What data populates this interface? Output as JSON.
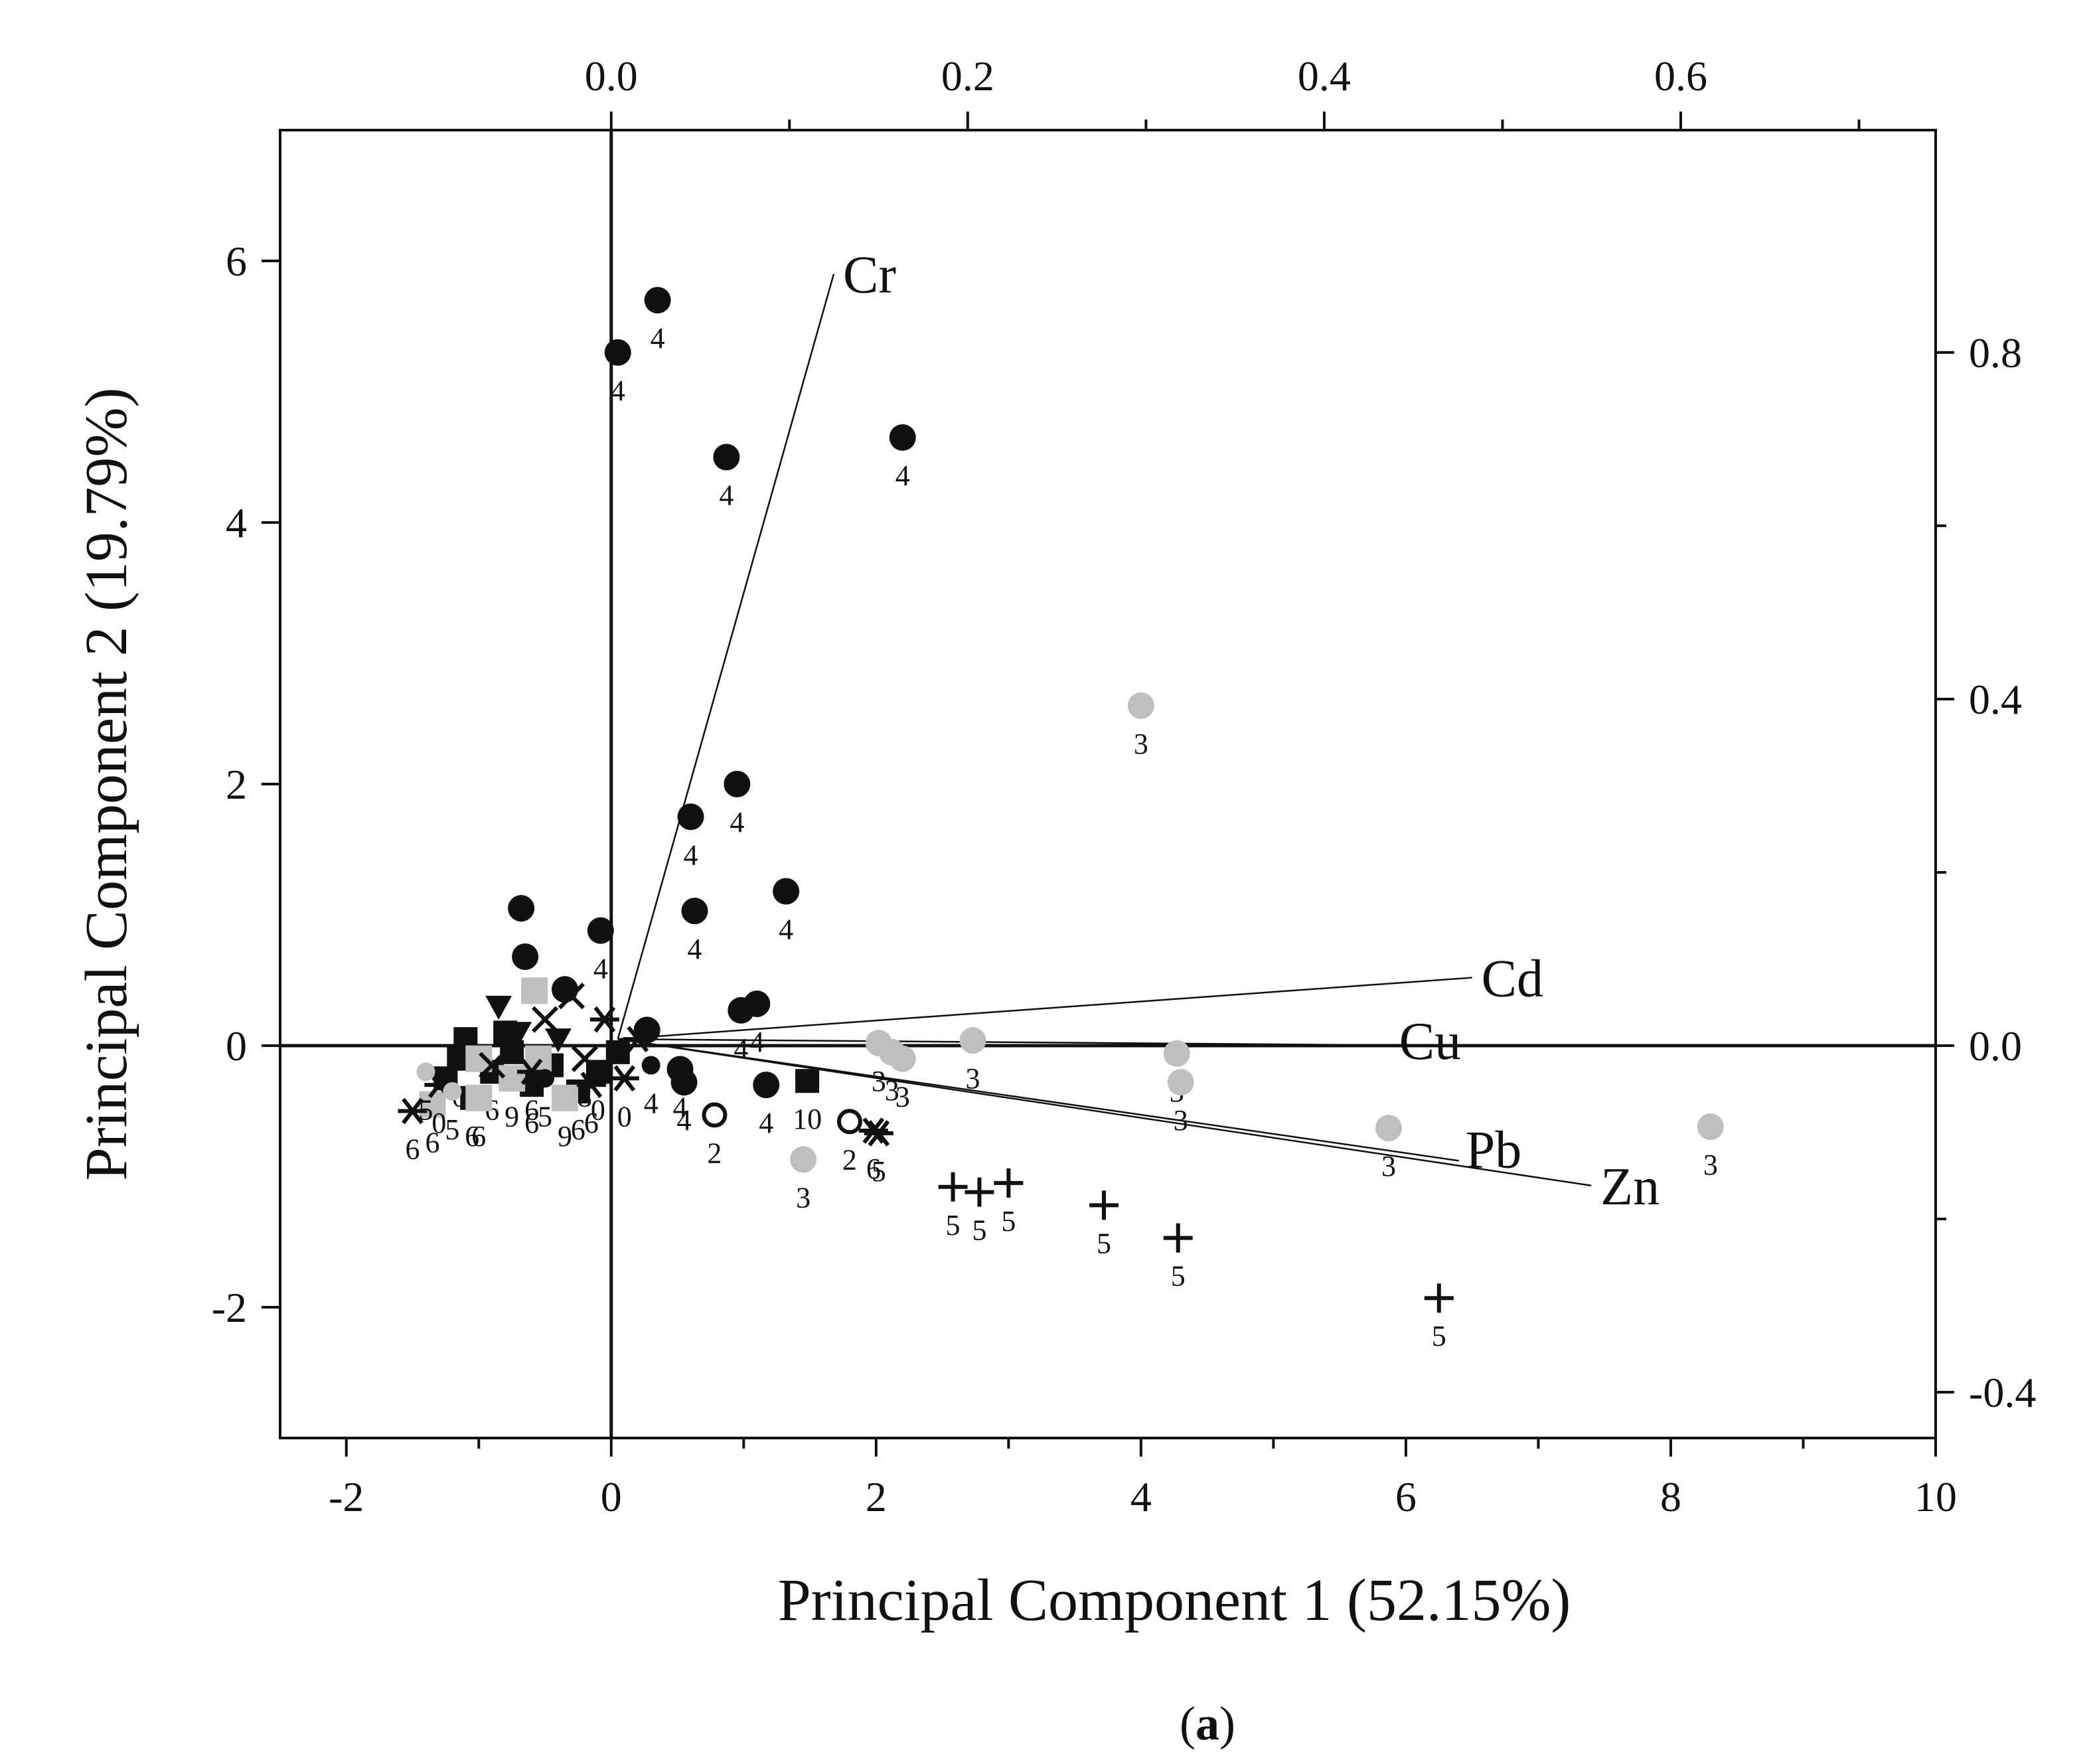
{
  "chart_data": {
    "type": "scatter",
    "xlabel": "Principal Component 1 (52.15%)",
    "ylabel": "Principal Component 2 (19.79%)",
    "caption_open": "(",
    "caption_letter": "a",
    "caption_close": ")",
    "x_ticks": [
      "-2",
      "0",
      "2",
      "4",
      "6",
      "8",
      "10"
    ],
    "y_ticks": [
      "-2",
      "0",
      "2",
      "4",
      "6"
    ],
    "top_ticks": [
      "0.0",
      "0.2",
      "0.4",
      "0.6"
    ],
    "right_ticks": [
      "-0.4",
      "0.0",
      "0.4",
      "0.8"
    ],
    "xlim": [
      -2.5,
      10
    ],
    "ylim": [
      -3,
      7
    ],
    "top_lim": [
      -0.0,
      0.743
    ],
    "right_lim": [
      -0.5,
      0.98
    ],
    "loadings": [
      {
        "label": "Cr",
        "x": 1.68,
        "y": 5.9
      },
      {
        "label": "Cd",
        "x": 6.5,
        "y": 0.52
      },
      {
        "label": "Cu",
        "x": 6.3,
        "y": 0.0
      },
      {
        "label": "Pb",
        "x": 6.4,
        "y": -0.88
      },
      {
        "label": "Zn",
        "x": 7.4,
        "y": -1.07
      }
    ],
    "points": [
      {
        "m": "black-circle",
        "x": 0.35,
        "y": 5.7,
        "label": "4"
      },
      {
        "m": "black-circle",
        "x": 0.05,
        "y": 5.3,
        "label": "4"
      },
      {
        "m": "black-circle",
        "x": 0.87,
        "y": 4.5,
        "label": "4"
      },
      {
        "m": "black-circle",
        "x": 2.2,
        "y": 4.65,
        "label": "4"
      },
      {
        "m": "black-circle",
        "x": 0.95,
        "y": 2.0,
        "label": "4"
      },
      {
        "m": "black-circle",
        "x": 0.6,
        "y": 1.75,
        "label": "4"
      },
      {
        "m": "black-circle",
        "x": 1.32,
        "y": 1.18,
        "label": "4"
      },
      {
        "m": "black-circle",
        "x": 0.63,
        "y": 1.03,
        "label": "4"
      },
      {
        "m": "black-circle",
        "x": -0.68,
        "y": 1.05,
        "label": ""
      },
      {
        "m": "black-circle",
        "x": -0.65,
        "y": 0.68,
        "label": ""
      },
      {
        "m": "black-circle",
        "x": -0.08,
        "y": 0.88,
        "label": "4"
      },
      {
        "m": "black-circle",
        "x": 0.98,
        "y": 0.27,
        "label": "4"
      },
      {
        "m": "black-circle",
        "x": 1.1,
        "y": 0.32,
        "label": "4"
      },
      {
        "m": "black-circle",
        "x": 1.17,
        "y": -0.3,
        "label": "4"
      },
      {
        "m": "black-circle",
        "x": 0.52,
        "y": -0.18,
        "label": "4"
      },
      {
        "m": "black-circle",
        "x": 0.55,
        "y": -0.28,
        "label": "4"
      },
      {
        "m": "black-circle",
        "x": -0.35,
        "y": 0.43,
        "label": ""
      },
      {
        "m": "black-circle",
        "x": 0.27,
        "y": 0.12,
        "label": ""
      },
      {
        "m": "gray-circle",
        "x": 4.0,
        "y": 2.6,
        "label": "3"
      },
      {
        "m": "gray-circle",
        "x": 2.73,
        "y": 0.04,
        "label": "3"
      },
      {
        "m": "gray-circle",
        "x": 2.02,
        "y": 0.02,
        "label": "3"
      },
      {
        "m": "gray-circle",
        "x": 2.12,
        "y": -0.05,
        "label": "3"
      },
      {
        "m": "gray-circle",
        "x": 2.2,
        "y": -0.1,
        "label": "3"
      },
      {
        "m": "gray-circle",
        "x": 4.27,
        "y": -0.06,
        "label": "3"
      },
      {
        "m": "gray-circle",
        "x": 4.3,
        "y": -0.28,
        "label": "3"
      },
      {
        "m": "gray-circle",
        "x": 5.87,
        "y": -0.63,
        "label": "3"
      },
      {
        "m": "gray-circle",
        "x": 8.3,
        "y": -0.62,
        "label": "3"
      },
      {
        "m": "gray-circle",
        "x": 1.45,
        "y": -0.87,
        "label": "3"
      },
      {
        "m": "plus",
        "x": 2.58,
        "y": -1.08,
        "label": "5"
      },
      {
        "m": "plus",
        "x": 2.78,
        "y": -1.12,
        "label": "5"
      },
      {
        "m": "plus",
        "x": 3.0,
        "y": -1.05,
        "label": "5"
      },
      {
        "m": "plus",
        "x": 3.72,
        "y": -1.22,
        "label": "5"
      },
      {
        "m": "plus",
        "x": 4.28,
        "y": -1.47,
        "label": "5"
      },
      {
        "m": "plus",
        "x": 6.25,
        "y": -1.93,
        "label": "5"
      },
      {
        "m": "open-circle",
        "x": 0.78,
        "y": -0.53,
        "label": "2"
      },
      {
        "m": "open-circle",
        "x": 1.8,
        "y": -0.58,
        "label": "2"
      },
      {
        "m": "asterisk",
        "x": 1.98,
        "y": -0.65,
        "label": "6"
      },
      {
        "m": "asterisk",
        "x": 2.02,
        "y": -0.67,
        "label": "5"
      },
      {
        "m": "black-square",
        "x": 1.48,
        "y": -0.27,
        "label": "10"
      },
      {
        "m": "black-square",
        "x": -1.25,
        "y": -0.25,
        "label": ""
      },
      {
        "m": "black-square",
        "x": -1.15,
        "y": -0.1,
        "label": "6"
      },
      {
        "m": "black-square",
        "x": -1.05,
        "y": -0.4,
        "label": "6"
      },
      {
        "m": "black-square",
        "x": -0.9,
        "y": -0.2,
        "label": "6"
      },
      {
        "m": "black-square",
        "x": -0.75,
        "y": -0.05,
        "label": ""
      },
      {
        "m": "black-square",
        "x": -0.6,
        "y": -0.3,
        "label": "6"
      },
      {
        "m": "black-square",
        "x": -0.45,
        "y": -0.15,
        "label": ""
      },
      {
        "m": "black-square",
        "x": -0.25,
        "y": -0.35,
        "label": "6"
      },
      {
        "m": "black-square",
        "x": -0.1,
        "y": -0.2,
        "label": "0"
      },
      {
        "m": "black-square",
        "x": 0.05,
        "y": -0.05,
        "label": ""
      },
      {
        "m": "black-square",
        "x": -1.1,
        "y": 0.05,
        "label": ""
      },
      {
        "m": "black-square",
        "x": -0.8,
        "y": 0.1,
        "label": ""
      },
      {
        "m": "gray-square",
        "x": -0.58,
        "y": 0.42,
        "label": ""
      },
      {
        "m": "gray-square",
        "x": -1.35,
        "y": -0.45,
        "label": "6"
      },
      {
        "m": "gray-square",
        "x": -1.0,
        "y": -0.1,
        "label": "9"
      },
      {
        "m": "gray-square",
        "x": -1.0,
        "y": -0.4,
        "label": "6"
      },
      {
        "m": "gray-square",
        "x": -0.75,
        "y": -0.25,
        "label": "9"
      },
      {
        "m": "gray-square",
        "x": -0.35,
        "y": -0.4,
        "label": "9"
      },
      {
        "m": "gray-square",
        "x": -0.55,
        "y": -0.1,
        "label": ""
      },
      {
        "m": "down-triangle",
        "x": -0.85,
        "y": 0.3,
        "label": ""
      },
      {
        "m": "down-triangle",
        "x": -0.7,
        "y": 0.1,
        "label": ""
      },
      {
        "m": "down-triangle",
        "x": -0.4,
        "y": 0.05,
        "label": ""
      },
      {
        "m": "cross",
        "x": -0.3,
        "y": 0.38,
        "label": ""
      },
      {
        "m": "cross",
        "x": -0.5,
        "y": 0.2,
        "label": ""
      },
      {
        "m": "cross",
        "x": -0.2,
        "y": -0.1,
        "label": "8"
      },
      {
        "m": "cross",
        "x": -0.9,
        "y": -0.15,
        "label": ""
      },
      {
        "m": "asterisk",
        "x": -1.5,
        "y": -0.5,
        "label": "6"
      },
      {
        "m": "asterisk",
        "x": -1.3,
        "y": -0.3,
        "label": "0"
      },
      {
        "m": "asterisk",
        "x": -0.05,
        "y": 0.2,
        "label": ""
      },
      {
        "m": "asterisk",
        "x": 0.1,
        "y": -0.25,
        "label": "0"
      },
      {
        "m": "asterisk",
        "x": -0.15,
        "y": -0.3,
        "label": "6"
      },
      {
        "m": "asterisk",
        "x": -0.6,
        "y": -0.2,
        "label": "6"
      },
      {
        "m": "asterisk",
        "x": 0.2,
        "y": 0.05,
        "label": ""
      },
      {
        "m": "gray-circle-small",
        "x": -1.4,
        "y": -0.2,
        "label": "5"
      },
      {
        "m": "gray-circle-small",
        "x": -1.2,
        "y": -0.35,
        "label": "5"
      },
      {
        "m": "black-circle-small",
        "x": -0.5,
        "y": -0.25,
        "label": "5"
      },
      {
        "m": "black-circle-small",
        "x": 0.3,
        "y": -0.15,
        "label": "4"
      }
    ]
  }
}
